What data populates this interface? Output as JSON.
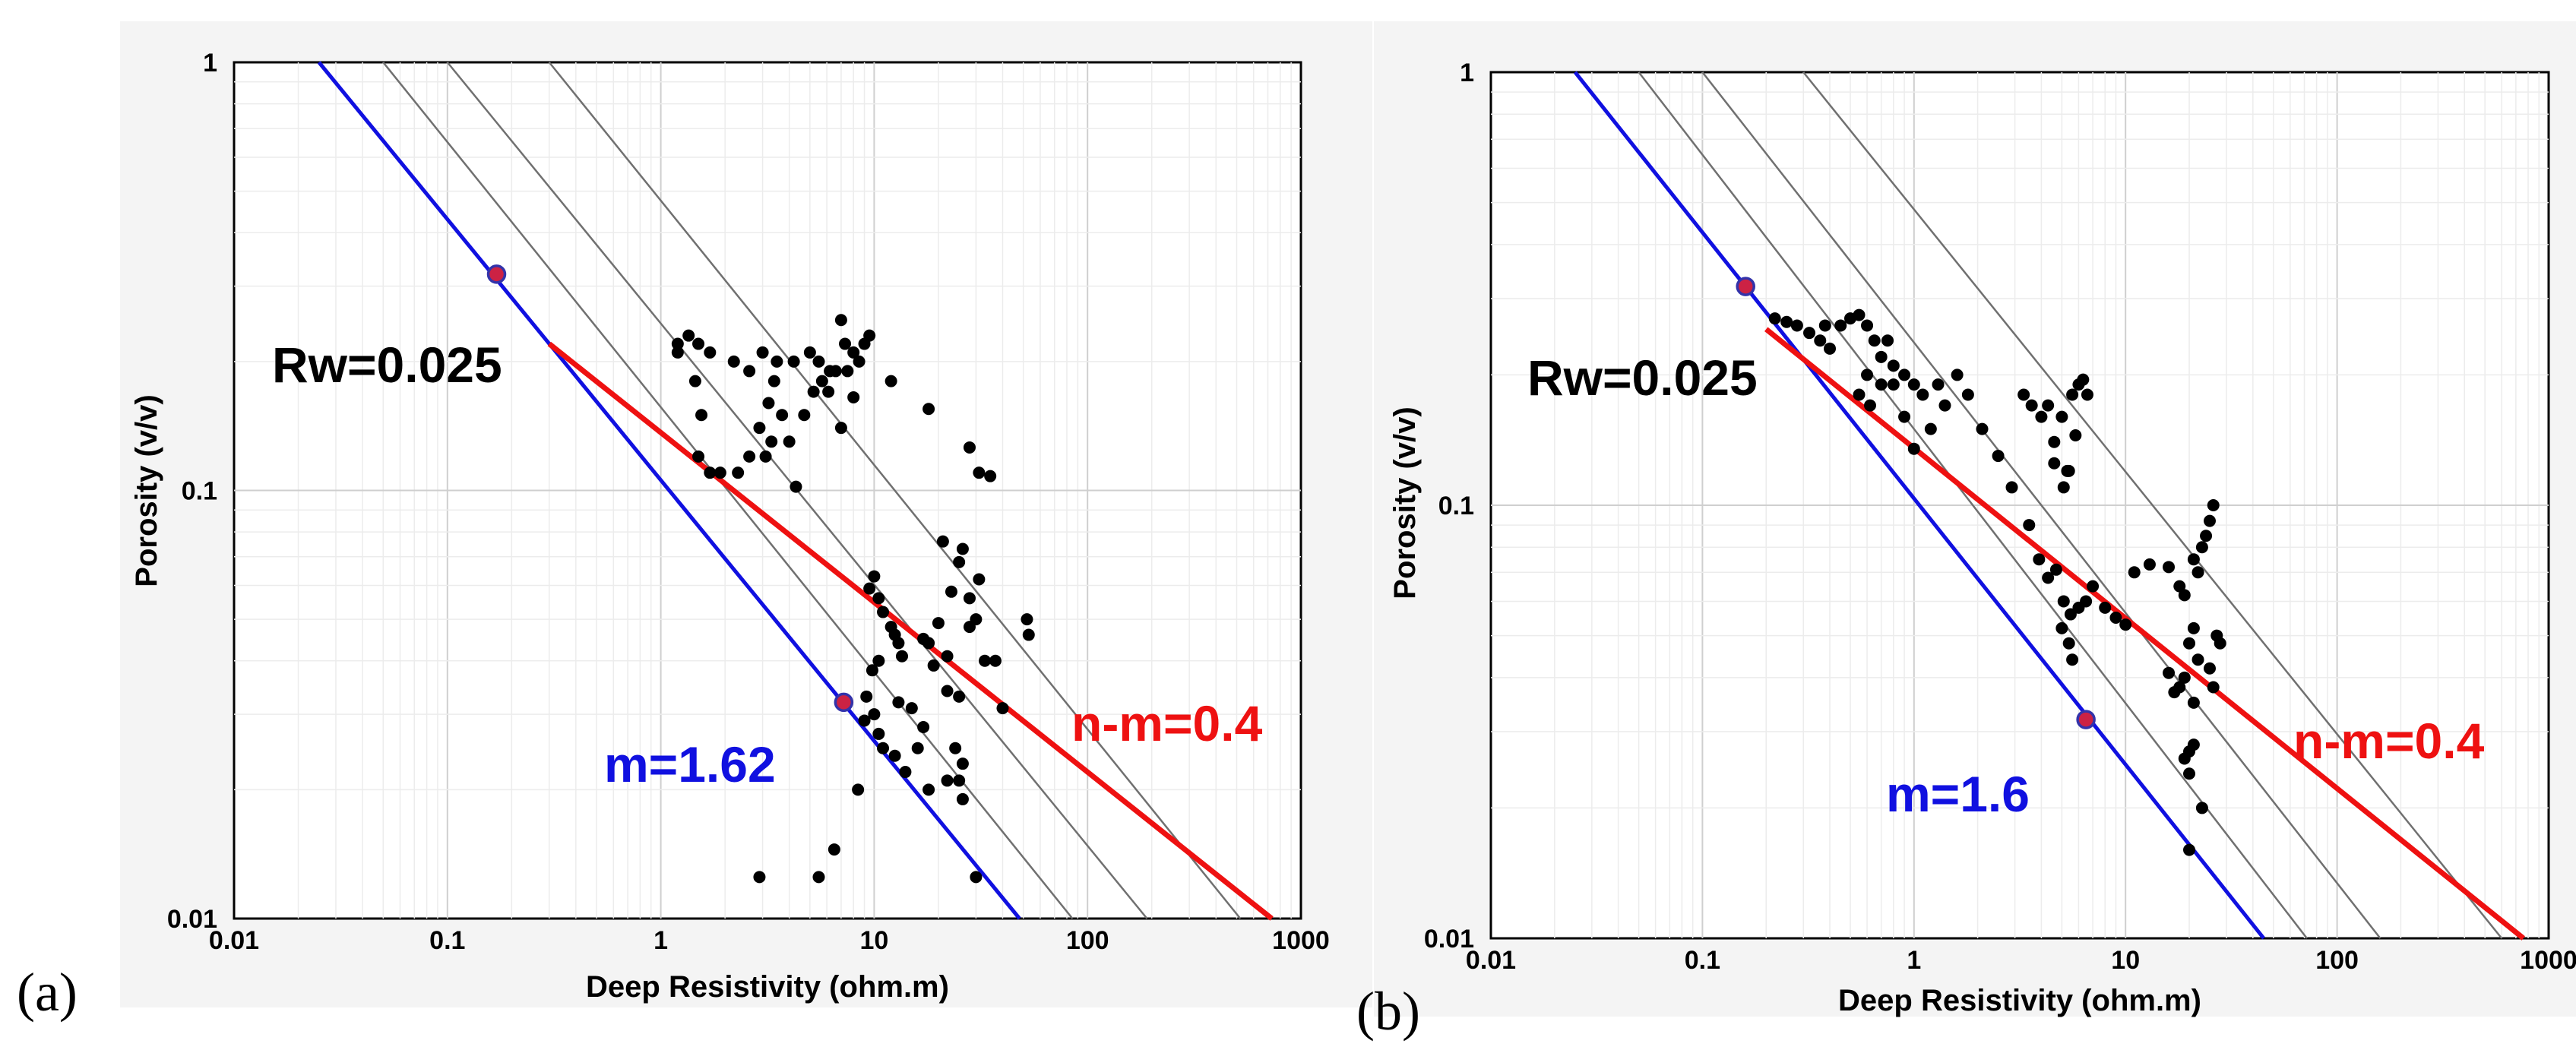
{
  "colors": {
    "blue_line": "#1010e0",
    "red_line": "#ee1111",
    "grey_line": "#707070",
    "control_point_fill": "#cc2244",
    "control_point_stroke": "#3333aa",
    "rw_text": "#000000"
  },
  "chart_data": [
    {
      "type": "scatter",
      "panel_label": "(a)",
      "xlabel": "Deep Resistivity (ohm.m)",
      "ylabel": "Porosity (v/v)",
      "x_scale": "log",
      "y_scale": "log",
      "xlim": [
        0.01,
        1000
      ],
      "ylim": [
        0.01,
        1
      ],
      "x_ticks": [
        "0.01",
        "0.1",
        "1",
        "10",
        "100",
        "1000"
      ],
      "y_ticks": [
        "1",
        "0.1",
        "0.01"
      ],
      "y_tick_values": [
        1,
        0.1,
        0.01
      ],
      "grid": true,
      "annotations": {
        "rw": "Rw=0.025",
        "m": "m=1.62",
        "nm": "n-m=0.4"
      },
      "lines": {
        "blue": [
          [
            0.025,
            1
          ],
          [
            48,
            0.01
          ]
        ],
        "red": [
          [
            0.3,
            0.22
          ],
          [
            730,
            0.01
          ]
        ],
        "grey": [
          [
            [
              0.05,
              1
            ],
            [
              85,
              0.01
            ]
          ],
          [
            [
              0.1,
              1
            ],
            [
              190,
              0.01
            ]
          ],
          [
            [
              0.3,
              1
            ],
            [
              520,
              0.01
            ]
          ]
        ]
      },
      "control_points": [
        [
          0.17,
          0.32
        ],
        [
          7.2,
          0.032
        ]
      ],
      "points": [
        [
          1.2,
          0.21
        ],
        [
          1.2,
          0.22
        ],
        [
          1.35,
          0.23
        ],
        [
          1.5,
          0.22
        ],
        [
          1.45,
          0.18
        ],
        [
          1.7,
          0.21
        ],
        [
          2.2,
          0.2
        ],
        [
          2.6,
          0.19
        ],
        [
          3.0,
          0.21
        ],
        [
          3.5,
          0.2
        ],
        [
          4.2,
          0.2
        ],
        [
          5.0,
          0.21
        ],
        [
          5.5,
          0.2
        ],
        [
          6.2,
          0.19
        ],
        [
          7.0,
          0.25
        ],
        [
          7.3,
          0.22
        ],
        [
          8.0,
          0.21
        ],
        [
          8.5,
          0.2
        ],
        [
          9.0,
          0.22
        ],
        [
          9.5,
          0.23
        ],
        [
          7.5,
          0.19
        ],
        [
          6.6,
          0.19
        ],
        [
          6.1,
          0.17
        ],
        [
          5.7,
          0.18
        ],
        [
          5.2,
          0.17
        ],
        [
          4.7,
          0.15
        ],
        [
          3.4,
          0.18
        ],
        [
          3.2,
          0.16
        ],
        [
          3.7,
          0.15
        ],
        [
          4.0,
          0.13
        ],
        [
          3.3,
          0.13
        ],
        [
          2.9,
          0.14
        ],
        [
          2.6,
          0.12
        ],
        [
          3.1,
          0.12
        ],
        [
          2.3,
          0.11
        ],
        [
          1.9,
          0.11
        ],
        [
          1.5,
          0.12
        ],
        [
          1.55,
          0.15
        ],
        [
          1.7,
          0.11
        ],
        [
          8.0,
          0.165
        ],
        [
          7.0,
          0.14
        ],
        [
          12.0,
          0.18
        ],
        [
          18.0,
          0.155
        ],
        [
          4.3,
          0.102
        ],
        [
          28.0,
          0.126
        ],
        [
          31.0,
          0.11
        ],
        [
          35.0,
          0.108
        ],
        [
          21.0,
          0.076
        ],
        [
          23.0,
          0.058
        ],
        [
          26.0,
          0.073
        ],
        [
          25.0,
          0.068
        ],
        [
          31.0,
          0.062
        ],
        [
          28.0,
          0.056
        ],
        [
          30.0,
          0.05
        ],
        [
          28.0,
          0.048
        ],
        [
          20.0,
          0.049
        ],
        [
          17.0,
          0.045
        ],
        [
          18.0,
          0.044
        ],
        [
          22.0,
          0.041
        ],
        [
          19.0,
          0.039
        ],
        [
          10.0,
          0.063
        ],
        [
          9.5,
          0.059
        ],
        [
          10.5,
          0.056
        ],
        [
          11.0,
          0.052
        ],
        [
          12.0,
          0.048
        ],
        [
          12.5,
          0.046
        ],
        [
          13.0,
          0.044
        ],
        [
          13.5,
          0.041
        ],
        [
          10.5,
          0.04
        ],
        [
          9.8,
          0.038
        ],
        [
          9.2,
          0.033
        ],
        [
          9.0,
          0.029
        ],
        [
          10.0,
          0.03
        ],
        [
          10.5,
          0.027
        ],
        [
          11.0,
          0.025
        ],
        [
          12.5,
          0.024
        ],
        [
          14.0,
          0.022
        ],
        [
          13.0,
          0.032
        ],
        [
          15.0,
          0.031
        ],
        [
          17.0,
          0.028
        ],
        [
          24.0,
          0.025
        ],
        [
          22.0,
          0.021
        ],
        [
          26.0,
          0.023
        ],
        [
          25.0,
          0.021
        ],
        [
          26.0,
          0.019
        ],
        [
          16.0,
          0.025
        ],
        [
          18.0,
          0.02
        ],
        [
          30.0,
          0.0125
        ],
        [
          8.4,
          0.02
        ],
        [
          2.9,
          0.0125
        ],
        [
          5.5,
          0.0125
        ],
        [
          6.5,
          0.0145
        ],
        [
          33.0,
          0.04
        ],
        [
          37.0,
          0.04
        ],
        [
          40.0,
          0.031
        ],
        [
          52.0,
          0.05
        ],
        [
          53.0,
          0.046
        ],
        [
          22.0,
          0.034
        ],
        [
          25.0,
          0.033
        ]
      ]
    },
    {
      "type": "scatter",
      "panel_label": "(b)",
      "xlabel": "Deep Resistivity (ohm.m)",
      "ylabel": "Porosity (v/v)",
      "x_scale": "log",
      "y_scale": "log",
      "xlim": [
        0.01,
        1000
      ],
      "ylim": [
        0.01,
        1
      ],
      "x_ticks": [
        "0.01",
        "0.1",
        "1",
        "10",
        "100",
        "1000"
      ],
      "y_ticks": [
        "1",
        "0.1",
        "0.01"
      ],
      "y_tick_values": [
        1,
        0.1,
        0.01
      ],
      "grid": true,
      "annotations": {
        "rw": "Rw=0.025",
        "m": "m=1.6",
        "nm": "n-m=0.4"
      },
      "lines": {
        "blue": [
          [
            0.025,
            1
          ],
          [
            45,
            0.01
          ]
        ],
        "red": [
          [
            0.2,
            0.255
          ],
          [
            760,
            0.01
          ]
        ],
        "grey": [
          [
            [
              0.05,
              1
            ],
            [
              72,
              0.01
            ]
          ],
          [
            [
              0.1,
              1
            ],
            [
              160,
              0.01
            ]
          ],
          [
            [
              0.3,
              1
            ],
            [
              600,
              0.01
            ]
          ]
        ]
      },
      "control_points": [
        [
          0.16,
          0.32
        ],
        [
          6.5,
          0.032
        ]
      ],
      "points": [
        [
          0.22,
          0.27
        ],
        [
          0.25,
          0.265
        ],
        [
          0.28,
          0.26
        ],
        [
          0.32,
          0.25
        ],
        [
          0.36,
          0.24
        ],
        [
          0.4,
          0.23
        ],
        [
          0.38,
          0.26
        ],
        [
          0.45,
          0.26
        ],
        [
          0.5,
          0.27
        ],
        [
          0.55,
          0.275
        ],
        [
          0.6,
          0.26
        ],
        [
          0.65,
          0.24
        ],
        [
          0.7,
          0.22
        ],
        [
          0.75,
          0.24
        ],
        [
          0.8,
          0.21
        ],
        [
          0.6,
          0.2
        ],
        [
          0.55,
          0.18
        ],
        [
          0.62,
          0.17
        ],
        [
          0.7,
          0.19
        ],
        [
          0.8,
          0.19
        ],
        [
          0.9,
          0.2
        ],
        [
          1.0,
          0.19
        ],
        [
          1.1,
          0.18
        ],
        [
          1.3,
          0.19
        ],
        [
          1.4,
          0.17
        ],
        [
          1.6,
          0.2
        ],
        [
          1.8,
          0.18
        ],
        [
          1.2,
          0.15
        ],
        [
          1.0,
          0.135
        ],
        [
          0.9,
          0.16
        ],
        [
          2.1,
          0.15
        ],
        [
          2.5,
          0.13
        ],
        [
          2.9,
          0.11
        ],
        [
          3.3,
          0.18
        ],
        [
          3.6,
          0.17
        ],
        [
          4.0,
          0.16
        ],
        [
          4.3,
          0.17
        ],
        [
          4.6,
          0.14
        ],
        [
          5.0,
          0.16
        ],
        [
          5.3,
          0.12
        ],
        [
          5.6,
          0.18
        ],
        [
          6.0,
          0.19
        ],
        [
          6.3,
          0.195
        ],
        [
          6.6,
          0.18
        ],
        [
          5.8,
          0.145
        ],
        [
          5.4,
          0.12
        ],
        [
          5.1,
          0.11
        ],
        [
          4.6,
          0.125
        ],
        [
          3.5,
          0.09
        ],
        [
          3.9,
          0.075
        ],
        [
          4.3,
          0.068
        ],
        [
          4.7,
          0.071
        ],
        [
          5.1,
          0.06
        ],
        [
          5.5,
          0.056
        ],
        [
          6.0,
          0.058
        ],
        [
          6.5,
          0.06
        ],
        [
          5.0,
          0.052
        ],
        [
          5.4,
          0.048
        ],
        [
          5.6,
          0.044
        ],
        [
          7.0,
          0.065
        ],
        [
          8.0,
          0.058
        ],
        [
          9.0,
          0.055
        ],
        [
          10.0,
          0.053
        ],
        [
          11.0,
          0.07
        ],
        [
          13.0,
          0.073
        ],
        [
          16.0,
          0.072
        ],
        [
          18.0,
          0.065
        ],
        [
          19.0,
          0.062
        ],
        [
          21.0,
          0.075
        ],
        [
          23.0,
          0.08
        ],
        [
          24.0,
          0.085
        ],
        [
          25.0,
          0.092
        ],
        [
          26.0,
          0.1
        ],
        [
          22.0,
          0.07
        ],
        [
          21.0,
          0.052
        ],
        [
          20.0,
          0.048
        ],
        [
          22.0,
          0.044
        ],
        [
          19.0,
          0.04
        ],
        [
          21.0,
          0.035
        ],
        [
          18.0,
          0.038
        ],
        [
          20.0,
          0.027
        ],
        [
          21.0,
          0.028
        ],
        [
          19.0,
          0.026
        ],
        [
          20.0,
          0.024
        ],
        [
          23.0,
          0.02
        ],
        [
          20.0,
          0.016
        ],
        [
          27.0,
          0.05
        ],
        [
          28.0,
          0.048
        ],
        [
          25.0,
          0.042
        ],
        [
          26.0,
          0.038
        ],
        [
          17.0,
          0.037
        ],
        [
          16.0,
          0.041
        ]
      ]
    }
  ]
}
